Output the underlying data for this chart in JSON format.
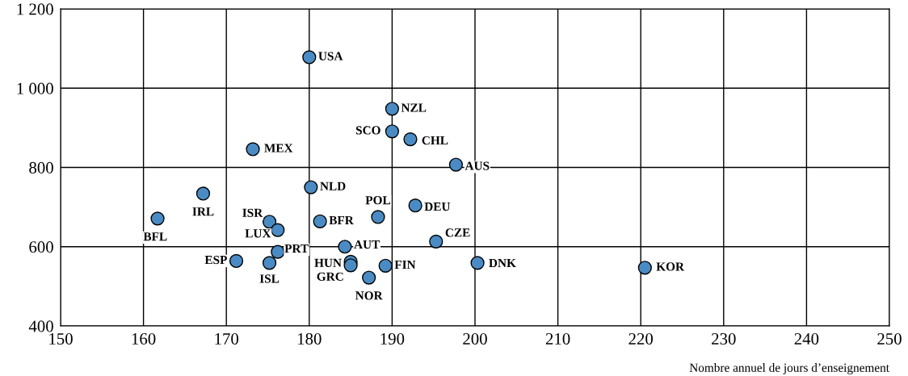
{
  "chart_data": {
    "type": "scatter",
    "xlabel": "Nombre annuel de jours d’enseignement",
    "x": [
      180,
      190,
      190,
      192.2,
      197.7,
      173.2,
      180.2,
      167.2,
      161.7,
      175.2,
      176.2,
      181.3,
      188.3,
      192.8,
      195.3,
      184.3,
      176.2,
      171.2,
      175.2,
      185,
      185,
      187.2,
      189.2,
      200.3,
      220.5
    ],
    "series": [
      {
        "color": "#4a8bc4",
        "values": [
          1078,
          948,
          891,
          871,
          807,
          846,
          750,
          734,
          671,
          663,
          642,
          664,
          675,
          704,
          613,
          600,
          587,
          564,
          559,
          562,
          553,
          522,
          552,
          559,
          547
        ]
      }
    ],
    "annotations": [
      {
        "text": "USA",
        "x": 180,
        "y": 1078
      },
      {
        "text": "NZL",
        "x": 190,
        "y": 948
      },
      {
        "text": "SCO",
        "x": 190,
        "y": 891
      },
      {
        "text": "CHL",
        "x": 192.2,
        "y": 871
      },
      {
        "text": "AUS",
        "x": 197.7,
        "y": 807
      },
      {
        "text": "MEX",
        "x": 173.2,
        "y": 846
      },
      {
        "text": "NLD",
        "x": 180.2,
        "y": 750
      },
      {
        "text": "IRL",
        "x": 167.2,
        "y": 734
      },
      {
        "text": "BFL",
        "x": 161.7,
        "y": 671
      },
      {
        "text": "ISR",
        "x": 175.2,
        "y": 663
      },
      {
        "text": "LUX",
        "x": 176.2,
        "y": 642
      },
      {
        "text": "BFR",
        "x": 181.3,
        "y": 664
      },
      {
        "text": "POL",
        "x": 188.3,
        "y": 675
      },
      {
        "text": "DEU",
        "x": 192.8,
        "y": 704
      },
      {
        "text": "CZE",
        "x": 195.3,
        "y": 613
      },
      {
        "text": "AUT",
        "x": 184.3,
        "y": 600
      },
      {
        "text": "PRT",
        "x": 176.2,
        "y": 587
      },
      {
        "text": "ESP",
        "x": 171.2,
        "y": 564
      },
      {
        "text": "ISL",
        "x": 175.2,
        "y": 559
      },
      {
        "text": "HUN",
        "x": 185,
        "y": 562
      },
      {
        "text": "GRC",
        "x": 185,
        "y": 553
      },
      {
        "text": "NOR",
        "x": 187.2,
        "y": 522
      },
      {
        "text": "FIN",
        "x": 189.2,
        "y": 552
      },
      {
        "text": "DNK",
        "x": 200.3,
        "y": 559
      },
      {
        "text": "KOR",
        "x": 220.5,
        "y": 547
      }
    ],
    "xlim": [
      150,
      250
    ],
    "xticks": [
      150,
      160,
      170,
      180,
      190,
      200,
      210,
      220,
      230,
      240,
      250
    ],
    "ylim": [
      400,
      1200
    ],
    "yticks": [
      {
        "value": 400,
        "label": "400"
      },
      {
        "value": 600,
        "label": "600"
      },
      {
        "value": 800,
        "label": "800"
      },
      {
        "value": 1000,
        "label": "1 000"
      },
      {
        "value": 1200,
        "label": "1 200"
      }
    ],
    "grid": true,
    "marker": "circle"
  }
}
